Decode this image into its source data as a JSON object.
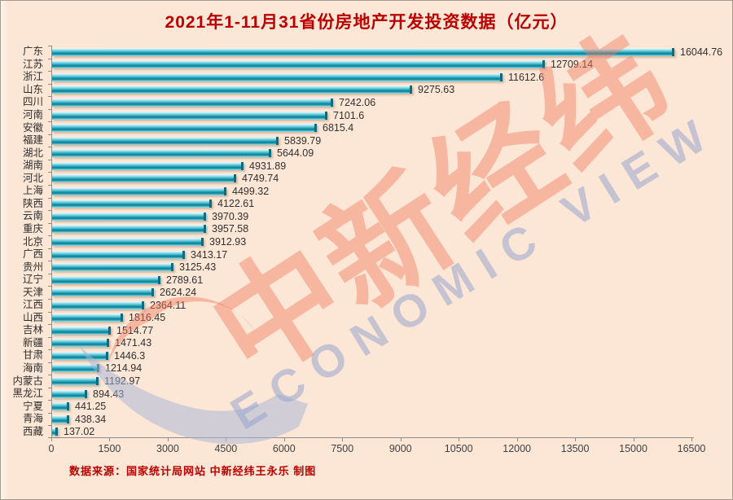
{
  "title": "2021年1-11月31省份房地产开发投资数据（亿元）",
  "footer": "数据来源：国家统计局网站 中新经纬王永乐 制图",
  "watermark": {
    "cn": "中新经纬",
    "en": "ECONOMIC VIEW"
  },
  "colors": {
    "background": "#fce7d6",
    "title_text": "#bb0000",
    "footer_text": "#bb0000",
    "bar_teal_dark": "#0f7f95",
    "bar_teal_light": "#9fe0ea",
    "bar_end_cap": "#0a6c81",
    "axis_line": "#8c8c8c",
    "label_text": "#2e2e2e",
    "watermark_red": "#f17b5f",
    "watermark_blue": "#97a6ce"
  },
  "chart_data": {
    "type": "bar",
    "orientation": "horizontal",
    "title": "2021年1-11月31省份房地产开发投资数据（亿元）",
    "unit": "亿元",
    "xlim": [
      0,
      16500
    ],
    "x_ticks": [
      0,
      1500,
      3000,
      4500,
      6000,
      7500,
      9000,
      10500,
      12000,
      13500,
      15000,
      16500
    ],
    "grid": false,
    "legend": false,
    "categories": [
      "广东",
      "江苏",
      "浙江",
      "山东",
      "四川",
      "河南",
      "安徽",
      "福建",
      "湖北",
      "湖南",
      "河北",
      "上海",
      "陕西",
      "云南",
      "重庆",
      "北京",
      "广西",
      "贵州",
      "辽宁",
      "天津",
      "江西",
      "山西",
      "吉林",
      "新疆",
      "甘肃",
      "海南",
      "内蒙古",
      "黑龙江",
      "宁夏",
      "青海",
      "西藏"
    ],
    "values": [
      16044.76,
      12709.14,
      11612.6,
      9275.63,
      7242.06,
      7101.6,
      6815.4,
      5839.79,
      5644.09,
      4931.89,
      4749.74,
      4499.32,
      4122.61,
      3970.39,
      3957.58,
      3912.93,
      3413.17,
      3125.43,
      2789.61,
      2624.24,
      2364.11,
      1816.45,
      1514.77,
      1471.43,
      1446.3,
      1214.94,
      1192.97,
      894.43,
      441.25,
      438.34,
      137.02
    ],
    "value_labels": [
      "16044.76",
      "12709.14",
      "11612.6",
      "9275.63",
      "7242.06",
      "7101.6",
      "6815.4",
      "5839.79",
      "5644.09",
      "4931.89",
      "4749.74",
      "4499.32",
      "4122.61",
      "3970.39",
      "3957.58",
      "3912.93",
      "3413.17",
      "3125.43",
      "2789.61",
      "2624.24",
      "2364.11",
      "1816.45",
      "1514.77",
      "1471.43",
      "1446.3",
      "1214.94",
      "1192.97",
      "894.43",
      "441.25",
      "438.34",
      "137.02"
    ]
  }
}
